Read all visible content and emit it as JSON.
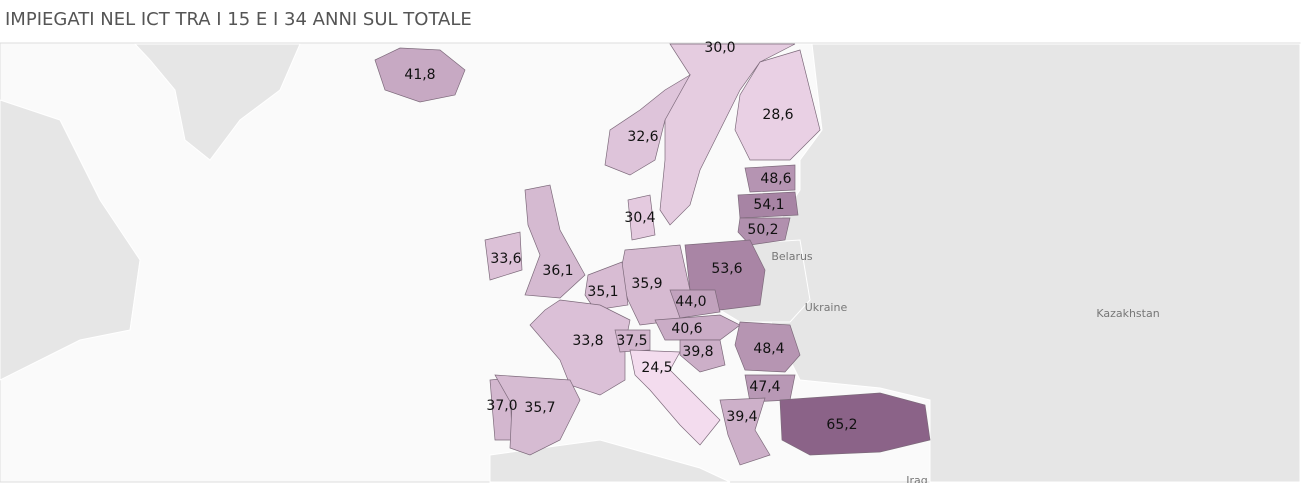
{
  "chart_data": {
    "type": "choropleth",
    "title": "IMPIEGATI NEL ICT TRA I 15 E I 34 ANNI SUL TOTALE",
    "values": [
      41.8,
      30.0,
      28.6,
      32.6,
      48.6,
      54.1,
      50.2,
      30.4,
      33.6,
      36.1,
      53.6,
      35.9,
      35.1,
      44.0,
      40.6,
      33.8,
      37.5,
      39.8,
      48.4,
      24.5,
      47.4,
      37.0,
      35.7,
      39.4,
      65.2
    ],
    "value_labels": [
      "41,8",
      "30,0",
      "28,6",
      "32,6",
      "48,6",
      "54,1",
      "50,2",
      "30,4",
      "33,6",
      "36,1",
      "53,6",
      "35,9",
      "35,1",
      "44,0",
      "40,6",
      "33,8",
      "37,5",
      "39,8",
      "48,4",
      "24,5",
      "47,4",
      "37,0",
      "35,7",
      "39,4",
      "65,2"
    ],
    "color_scale": [
      "#f3dcee",
      "#8b6388"
    ],
    "basemap_labels": [
      "Belarus",
      "Ukraine",
      "Kazakhstan",
      "Iraq"
    ]
  }
}
